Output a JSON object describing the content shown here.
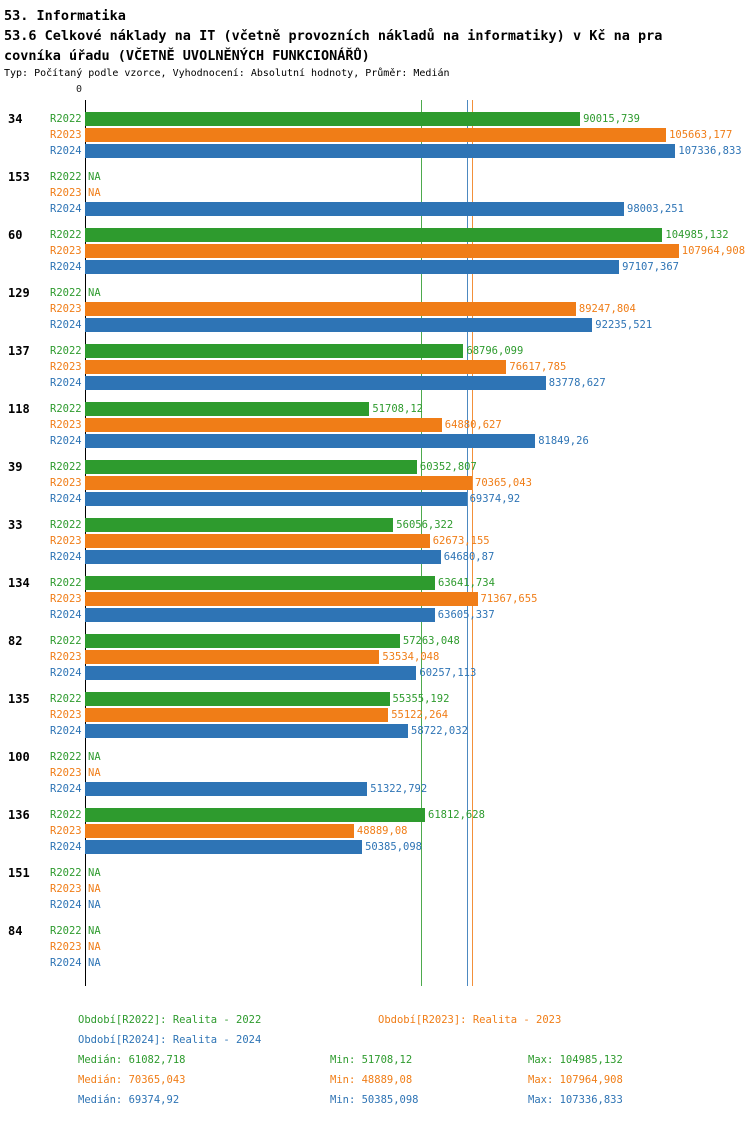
{
  "header": {
    "title": "53. Informatika",
    "subtitle_line1": "53.6 Celkové náklady na IT (včetně provozních nákladů na informatiky) v Kč na pra",
    "subtitle_line2": "covníka úřadu (VČETNĚ UVOLNĚNÝCH FUNKCIONÁŘŮ)",
    "meta": "Typ: Počítaný podle vzorce, Vyhodnocení: Absolutní hodnoty, Průměr: Medián"
  },
  "chart_data": {
    "type": "bar",
    "orientation": "horizontal",
    "x_origin_label": "0",
    "xlim": [
      0,
      120000
    ],
    "grid": false,
    "legend_position": "bottom",
    "series": [
      {
        "key": "R2022",
        "label": "R2022",
        "color": "#2e9b2e",
        "legend": "Období[R2022]: Realita - 2022"
      },
      {
        "key": "R2023",
        "label": "R2023",
        "color": "#f07d17",
        "legend": "Období[R2023]: Realita - 2023"
      },
      {
        "key": "R2024",
        "label": "R2024",
        "color": "#2e74b5",
        "legend": "Období[R2024]: Realita - 2024"
      }
    ],
    "median_lines": [
      {
        "series": "R2022",
        "value": 61082.718,
        "color": "#2e9b2e"
      },
      {
        "series": "R2023",
        "value": 70365.043,
        "color": "#f07d17"
      },
      {
        "series": "R2024",
        "value": 69374.92,
        "color": "#2e74b5"
      }
    ],
    "groups": [
      {
        "id": "34",
        "bars": [
          {
            "series": "R2022",
            "value": 90015.739,
            "label": "90015,739"
          },
          {
            "series": "R2023",
            "value": 105663.177,
            "label": "105663,177"
          },
          {
            "series": "R2024",
            "value": 107336.833,
            "label": "107336,833"
          }
        ]
      },
      {
        "id": "153",
        "bars": [
          {
            "series": "R2022",
            "value": null,
            "label": "NA"
          },
          {
            "series": "R2023",
            "value": null,
            "label": "NA"
          },
          {
            "series": "R2024",
            "value": 98003.251,
            "label": "98003,251"
          }
        ]
      },
      {
        "id": "60",
        "bars": [
          {
            "series": "R2022",
            "value": 104985.132,
            "label": "104985,132"
          },
          {
            "series": "R2023",
            "value": 107964.908,
            "label": "107964,908"
          },
          {
            "series": "R2024",
            "value": 97107.367,
            "label": "97107,367"
          }
        ]
      },
      {
        "id": "129",
        "bars": [
          {
            "series": "R2022",
            "value": null,
            "label": "NA"
          },
          {
            "series": "R2023",
            "value": 89247.804,
            "label": "89247,804"
          },
          {
            "series": "R2024",
            "value": 92235.521,
            "label": "92235,521"
          }
        ]
      },
      {
        "id": "137",
        "bars": [
          {
            "series": "R2022",
            "value": 68796.099,
            "label": "68796,099"
          },
          {
            "series": "R2023",
            "value": 76617.785,
            "label": "76617,785"
          },
          {
            "series": "R2024",
            "value": 83778.627,
            "label": "83778,627"
          }
        ]
      },
      {
        "id": "118",
        "bars": [
          {
            "series": "R2022",
            "value": 51708.12,
            "label": "51708,12"
          },
          {
            "series": "R2023",
            "value": 64880.627,
            "label": "64880,627"
          },
          {
            "series": "R2024",
            "value": 81849.26,
            "label": "81849,26"
          }
        ]
      },
      {
        "id": "39",
        "bars": [
          {
            "series": "R2022",
            "value": 60352.807,
            "label": "60352,807"
          },
          {
            "series": "R2023",
            "value": 70365.043,
            "label": "70365,043"
          },
          {
            "series": "R2024",
            "value": 69374.92,
            "label": "69374,92"
          }
        ]
      },
      {
        "id": "33",
        "bars": [
          {
            "series": "R2022",
            "value": 56056.322,
            "label": "56056,322"
          },
          {
            "series": "R2023",
            "value": 62673.155,
            "label": "62673,155"
          },
          {
            "series": "R2024",
            "value": 64680.87,
            "label": "64680,87"
          }
        ]
      },
      {
        "id": "134",
        "bars": [
          {
            "series": "R2022",
            "value": 63641.734,
            "label": "63641,734"
          },
          {
            "series": "R2023",
            "value": 71367.655,
            "label": "71367,655"
          },
          {
            "series": "R2024",
            "value": 63605.337,
            "label": "63605,337"
          }
        ]
      },
      {
        "id": "82",
        "bars": [
          {
            "series": "R2022",
            "value": 57263.048,
            "label": "57263,048"
          },
          {
            "series": "R2023",
            "value": 53534.048,
            "label": "53534,048"
          },
          {
            "series": "R2024",
            "value": 60257.113,
            "label": "60257,113"
          }
        ]
      },
      {
        "id": "135",
        "bars": [
          {
            "series": "R2022",
            "value": 55355.192,
            "label": "55355,192"
          },
          {
            "series": "R2023",
            "value": 55122.264,
            "label": "55122,264"
          },
          {
            "series": "R2024",
            "value": 58722.032,
            "label": "58722,032"
          }
        ]
      },
      {
        "id": "100",
        "bars": [
          {
            "series": "R2022",
            "value": null,
            "label": "NA"
          },
          {
            "series": "R2023",
            "value": null,
            "label": "NA"
          },
          {
            "series": "R2024",
            "value": 51322.792,
            "label": "51322,792"
          }
        ]
      },
      {
        "id": "136",
        "bars": [
          {
            "series": "R2022",
            "value": 61812.628,
            "label": "61812,628"
          },
          {
            "series": "R2023",
            "value": 48889.08,
            "label": "48889,08"
          },
          {
            "series": "R2024",
            "value": 50385.098,
            "label": "50385,098"
          }
        ]
      },
      {
        "id": "151",
        "bars": [
          {
            "series": "R2022",
            "value": null,
            "label": "NA"
          },
          {
            "series": "R2023",
            "value": null,
            "label": "NA"
          },
          {
            "series": "R2024",
            "value": null,
            "label": "NA"
          }
        ]
      },
      {
        "id": "84",
        "bars": [
          {
            "series": "R2022",
            "value": null,
            "label": "NA"
          },
          {
            "series": "R2023",
            "value": null,
            "label": "NA"
          },
          {
            "series": "R2024",
            "value": null,
            "label": "NA"
          }
        ]
      }
    ],
    "stats": [
      {
        "series": "R2022",
        "color": "#2e9b2e",
        "median": "Medián: 61082,718",
        "min": "Min: 51708,12",
        "max": "Max: 104985,132"
      },
      {
        "series": "R2023",
        "color": "#f07d17",
        "median": "Medián: 70365,043",
        "min": "Min: 48889,08",
        "max": "Max: 107964,908"
      },
      {
        "series": "R2024",
        "color": "#2e74b5",
        "median": "Medián: 69374,92",
        "min": "Min: 50385,098",
        "max": "Max: 107336,833"
      }
    ]
  }
}
